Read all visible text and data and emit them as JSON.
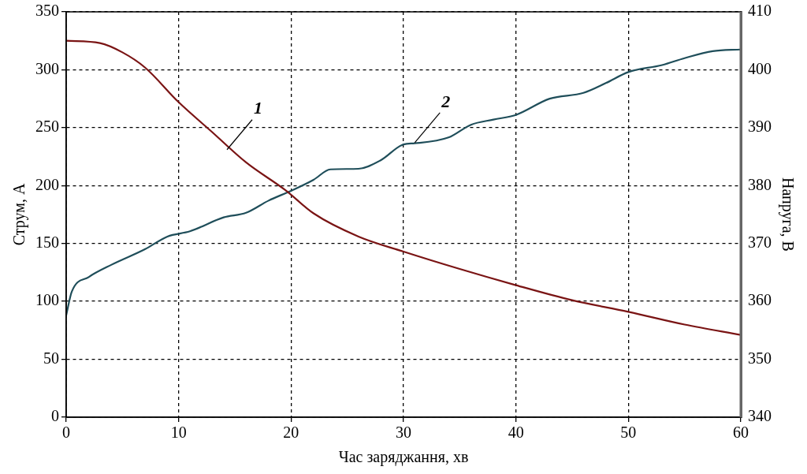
{
  "chart_data": {
    "type": "line",
    "xlabel": "Час заряджання, хв",
    "ylabel": "Струм, А",
    "y2label": "Напруга, В",
    "xlim": [
      0,
      60
    ],
    "xticks": [
      0,
      10,
      20,
      30,
      40,
      50,
      60
    ],
    "ylim": [
      0,
      350
    ],
    "yticks": [
      0,
      50,
      100,
      150,
      200,
      250,
      300,
      350
    ],
    "y2lim": [
      340,
      410
    ],
    "y2ticks": [
      340,
      350,
      360,
      370,
      380,
      390,
      400,
      410
    ],
    "grid": true,
    "legend": false,
    "marker": "none",
    "line_style": "solid",
    "annotations": [
      {
        "text": "1",
        "x": 14.3,
        "y": 231
      },
      {
        "text": "2",
        "x": 31,
        "y": 237
      }
    ],
    "series": [
      {
        "color": "#7a1414",
        "x": [
          0,
          3,
          5,
          7,
          10,
          13,
          16,
          19.5,
          22,
          26,
          30,
          35,
          40,
          45,
          50,
          55,
          60
        ],
        "values": [
          325,
          323,
          315,
          302,
          272,
          246,
          220,
          196,
          176,
          156,
          143,
          128,
          114,
          101,
          91,
          80,
          71
        ]
      },
      {
        "color": "#1f4e5a",
        "axis": "y2",
        "x": [
          0,
          0.5,
          2,
          4,
          7,
          9,
          11,
          14,
          16,
          18,
          20,
          22,
          23.5,
          26,
          28,
          30,
          31,
          34,
          36,
          38,
          40,
          43,
          46,
          48,
          50,
          53,
          55,
          57.5,
          60
        ],
        "values": [
          357.6,
          361.7,
          364.2,
          366.3,
          369,
          371.2,
          372.1,
          374.5,
          375.3,
          377.4,
          379.1,
          381,
          382.8,
          382.9,
          384.4,
          387.1,
          387.3,
          388.3,
          390.5,
          391.4,
          392.2,
          395,
          396,
          397.7,
          399.6,
          400.8,
          402,
          403.2,
          403.5
        ]
      }
    ]
  }
}
